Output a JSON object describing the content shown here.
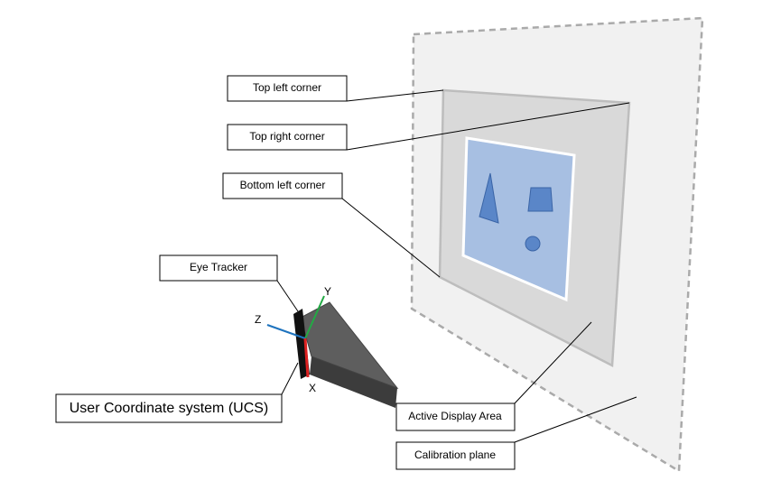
{
  "labels": {
    "top_left_corner": "Top left corner",
    "top_right_corner": "Top right corner",
    "bottom_left_corner": "Bottom left corner",
    "eye_tracker": "Eye Tracker",
    "ucs": "User Coordinate system (UCS)",
    "active_display_area": "Active Display Area",
    "calibration_plane": "Calibration plane"
  },
  "axes": {
    "x": "X",
    "y": "Y",
    "z": "Z"
  }
}
